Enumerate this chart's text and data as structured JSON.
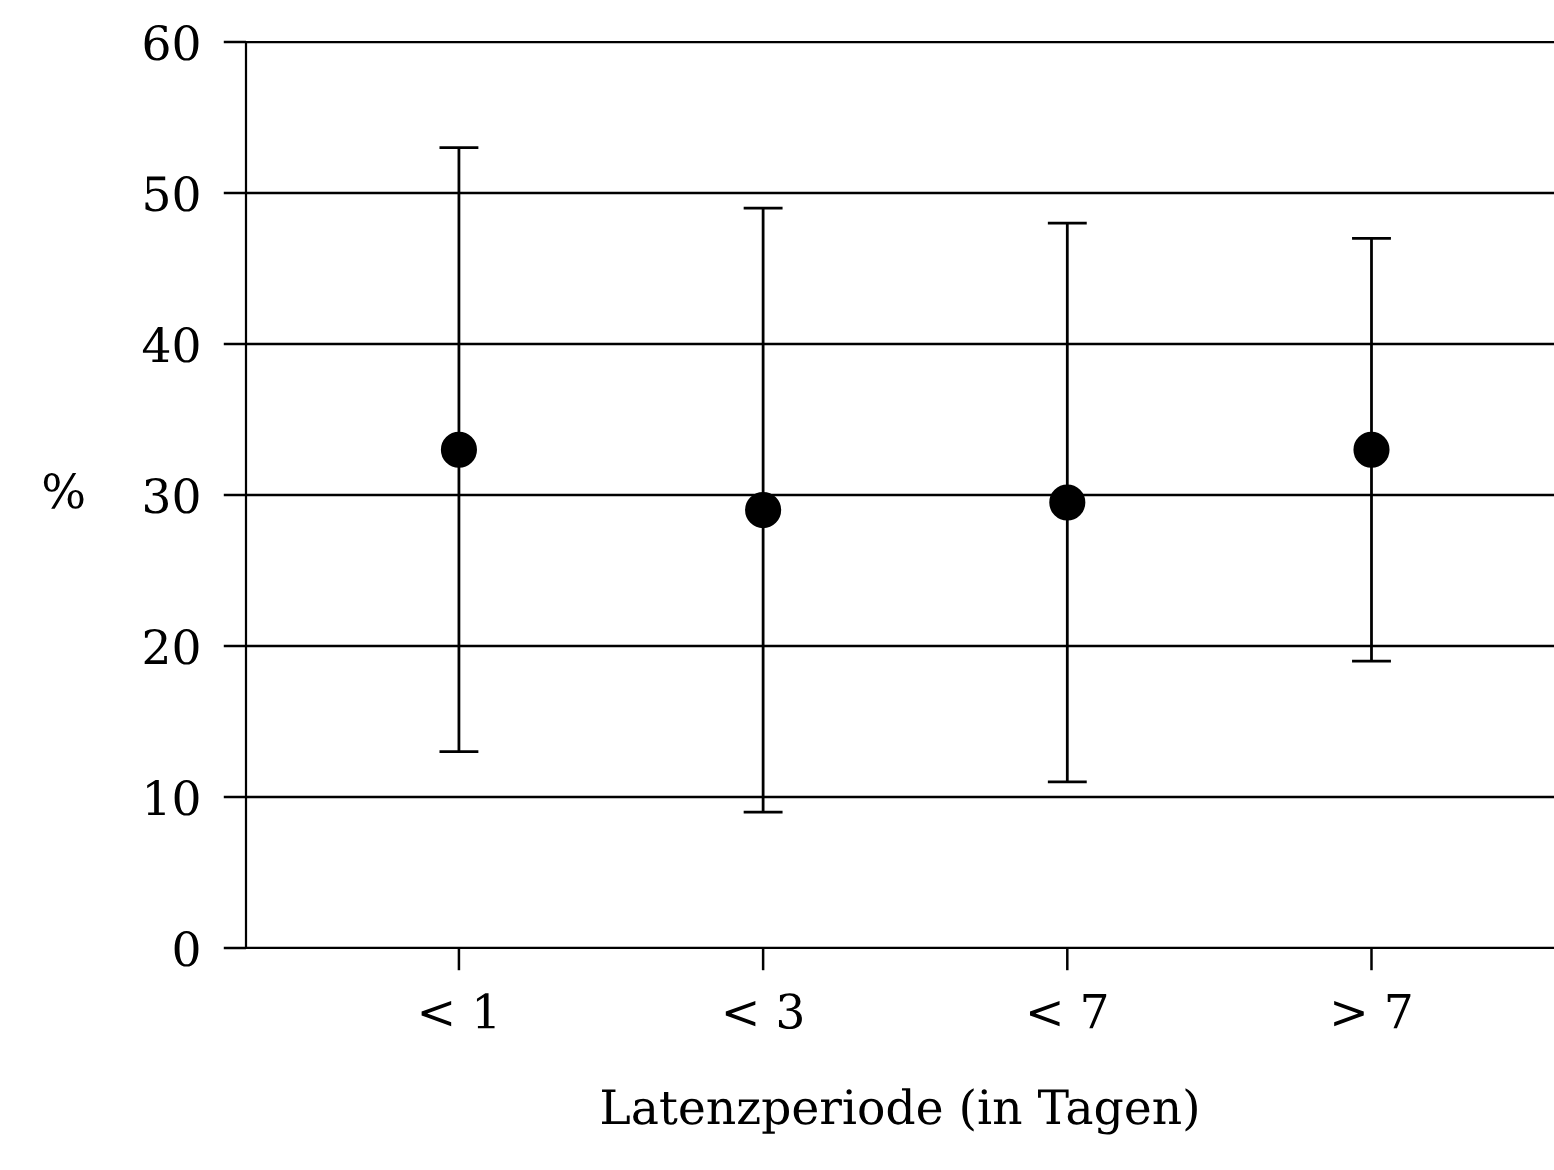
{
  "chart_data": {
    "type": "scatter",
    "xlabel": "Latenzperiode (in Tagen)",
    "ylabel": "%",
    "categories": [
      "< 1",
      "< 3",
      "< 7",
      "> 7"
    ],
    "series": [
      {
        "color": "#000000",
        "values": [
          33,
          29,
          29.5,
          33
        ],
        "errors": [
          [
            13,
            53
          ],
          [
            9,
            49
          ],
          [
            11,
            48
          ],
          [
            19,
            47
          ]
        ]
      }
    ],
    "ylim": [
      0,
      60
    ],
    "yticks": [
      0,
      10,
      20,
      30,
      40,
      50,
      60
    ],
    "grid": "y",
    "marker": "circle"
  }
}
